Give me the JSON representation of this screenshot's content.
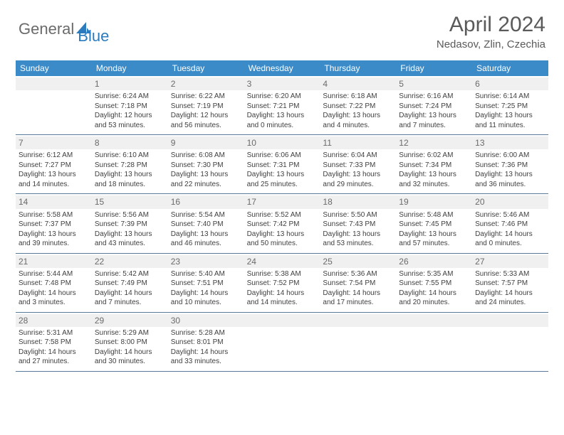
{
  "brand": {
    "general": "General",
    "blue": "Blue"
  },
  "title": "April 2024",
  "location": "Nedasov, Zlin, Czechia",
  "colors": {
    "header_bg": "#3b8bc9",
    "header_text": "#ffffff",
    "daynum_bg": "#f0f0f0",
    "border": "#5a7a9a",
    "text": "#404040",
    "title_color": "#5a5a5a",
    "brand_gray": "#6b6b6b",
    "brand_blue": "#2b7bbf"
  },
  "days_of_week": [
    "Sunday",
    "Monday",
    "Tuesday",
    "Wednesday",
    "Thursday",
    "Friday",
    "Saturday"
  ],
  "weeks": [
    [
      {
        "n": "",
        "sr": "",
        "ss": "",
        "dl": ""
      },
      {
        "n": "1",
        "sr": "Sunrise: 6:24 AM",
        "ss": "Sunset: 7:18 PM",
        "dl": "Daylight: 12 hours and 53 minutes."
      },
      {
        "n": "2",
        "sr": "Sunrise: 6:22 AM",
        "ss": "Sunset: 7:19 PM",
        "dl": "Daylight: 12 hours and 56 minutes."
      },
      {
        "n": "3",
        "sr": "Sunrise: 6:20 AM",
        "ss": "Sunset: 7:21 PM",
        "dl": "Daylight: 13 hours and 0 minutes."
      },
      {
        "n": "4",
        "sr": "Sunrise: 6:18 AM",
        "ss": "Sunset: 7:22 PM",
        "dl": "Daylight: 13 hours and 4 minutes."
      },
      {
        "n": "5",
        "sr": "Sunrise: 6:16 AM",
        "ss": "Sunset: 7:24 PM",
        "dl": "Daylight: 13 hours and 7 minutes."
      },
      {
        "n": "6",
        "sr": "Sunrise: 6:14 AM",
        "ss": "Sunset: 7:25 PM",
        "dl": "Daylight: 13 hours and 11 minutes."
      }
    ],
    [
      {
        "n": "7",
        "sr": "Sunrise: 6:12 AM",
        "ss": "Sunset: 7:27 PM",
        "dl": "Daylight: 13 hours and 14 minutes."
      },
      {
        "n": "8",
        "sr": "Sunrise: 6:10 AM",
        "ss": "Sunset: 7:28 PM",
        "dl": "Daylight: 13 hours and 18 minutes."
      },
      {
        "n": "9",
        "sr": "Sunrise: 6:08 AM",
        "ss": "Sunset: 7:30 PM",
        "dl": "Daylight: 13 hours and 22 minutes."
      },
      {
        "n": "10",
        "sr": "Sunrise: 6:06 AM",
        "ss": "Sunset: 7:31 PM",
        "dl": "Daylight: 13 hours and 25 minutes."
      },
      {
        "n": "11",
        "sr": "Sunrise: 6:04 AM",
        "ss": "Sunset: 7:33 PM",
        "dl": "Daylight: 13 hours and 29 minutes."
      },
      {
        "n": "12",
        "sr": "Sunrise: 6:02 AM",
        "ss": "Sunset: 7:34 PM",
        "dl": "Daylight: 13 hours and 32 minutes."
      },
      {
        "n": "13",
        "sr": "Sunrise: 6:00 AM",
        "ss": "Sunset: 7:36 PM",
        "dl": "Daylight: 13 hours and 36 minutes."
      }
    ],
    [
      {
        "n": "14",
        "sr": "Sunrise: 5:58 AM",
        "ss": "Sunset: 7:37 PM",
        "dl": "Daylight: 13 hours and 39 minutes."
      },
      {
        "n": "15",
        "sr": "Sunrise: 5:56 AM",
        "ss": "Sunset: 7:39 PM",
        "dl": "Daylight: 13 hours and 43 minutes."
      },
      {
        "n": "16",
        "sr": "Sunrise: 5:54 AM",
        "ss": "Sunset: 7:40 PM",
        "dl": "Daylight: 13 hours and 46 minutes."
      },
      {
        "n": "17",
        "sr": "Sunrise: 5:52 AM",
        "ss": "Sunset: 7:42 PM",
        "dl": "Daylight: 13 hours and 50 minutes."
      },
      {
        "n": "18",
        "sr": "Sunrise: 5:50 AM",
        "ss": "Sunset: 7:43 PM",
        "dl": "Daylight: 13 hours and 53 minutes."
      },
      {
        "n": "19",
        "sr": "Sunrise: 5:48 AM",
        "ss": "Sunset: 7:45 PM",
        "dl": "Daylight: 13 hours and 57 minutes."
      },
      {
        "n": "20",
        "sr": "Sunrise: 5:46 AM",
        "ss": "Sunset: 7:46 PM",
        "dl": "Daylight: 14 hours and 0 minutes."
      }
    ],
    [
      {
        "n": "21",
        "sr": "Sunrise: 5:44 AM",
        "ss": "Sunset: 7:48 PM",
        "dl": "Daylight: 14 hours and 3 minutes."
      },
      {
        "n": "22",
        "sr": "Sunrise: 5:42 AM",
        "ss": "Sunset: 7:49 PM",
        "dl": "Daylight: 14 hours and 7 minutes."
      },
      {
        "n": "23",
        "sr": "Sunrise: 5:40 AM",
        "ss": "Sunset: 7:51 PM",
        "dl": "Daylight: 14 hours and 10 minutes."
      },
      {
        "n": "24",
        "sr": "Sunrise: 5:38 AM",
        "ss": "Sunset: 7:52 PM",
        "dl": "Daylight: 14 hours and 14 minutes."
      },
      {
        "n": "25",
        "sr": "Sunrise: 5:36 AM",
        "ss": "Sunset: 7:54 PM",
        "dl": "Daylight: 14 hours and 17 minutes."
      },
      {
        "n": "26",
        "sr": "Sunrise: 5:35 AM",
        "ss": "Sunset: 7:55 PM",
        "dl": "Daylight: 14 hours and 20 minutes."
      },
      {
        "n": "27",
        "sr": "Sunrise: 5:33 AM",
        "ss": "Sunset: 7:57 PM",
        "dl": "Daylight: 14 hours and 24 minutes."
      }
    ],
    [
      {
        "n": "28",
        "sr": "Sunrise: 5:31 AM",
        "ss": "Sunset: 7:58 PM",
        "dl": "Daylight: 14 hours and 27 minutes."
      },
      {
        "n": "29",
        "sr": "Sunrise: 5:29 AM",
        "ss": "Sunset: 8:00 PM",
        "dl": "Daylight: 14 hours and 30 minutes."
      },
      {
        "n": "30",
        "sr": "Sunrise: 5:28 AM",
        "ss": "Sunset: 8:01 PM",
        "dl": "Daylight: 14 hours and 33 minutes."
      },
      {
        "n": "",
        "sr": "",
        "ss": "",
        "dl": ""
      },
      {
        "n": "",
        "sr": "",
        "ss": "",
        "dl": ""
      },
      {
        "n": "",
        "sr": "",
        "ss": "",
        "dl": ""
      },
      {
        "n": "",
        "sr": "",
        "ss": "",
        "dl": ""
      }
    ]
  ]
}
